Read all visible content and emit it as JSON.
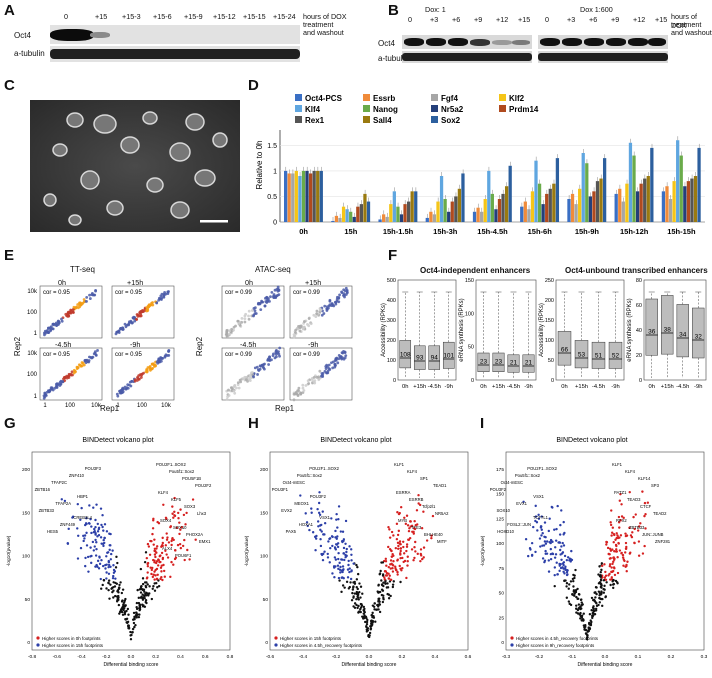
{
  "panels": {
    "A": "A",
    "B": "B",
    "C": "C",
    "D": "D",
    "E": "E",
    "F": "F",
    "G": "G",
    "H": "H",
    "I": "I"
  },
  "A": {
    "lanes": [
      "0",
      "+15",
      "+15-3",
      "+15-6",
      "+15-9",
      "+15-12",
      "+15-15",
      "+15-24"
    ],
    "rows": [
      "Oct4",
      "a-tubulin"
    ],
    "note1": "hours of DOX",
    "note2": "treatment",
    "note3": "and washout"
  },
  "B": {
    "group1": "Dox: 1",
    "group2": "Dox 1:600",
    "lanes": [
      "0",
      "+3",
      "+6",
      "+9",
      "+12",
      "+15"
    ],
    "rows": [
      "Oct4",
      "a-tubulin"
    ],
    "note1": "hours of DOX",
    "note2": "treatment",
    "note3": "and washout"
  },
  "D": {
    "ylabel": "Relative to 0h",
    "yticks": [
      "0",
      "0.5",
      "1",
      "1.5"
    ],
    "groups": [
      "0h",
      "15h",
      "15h-1.5h",
      "15h-3h",
      "15h-4.5h",
      "15h-6h",
      "15h-9h",
      "15h-12h",
      "15h-15h"
    ],
    "legend": [
      {
        "name": "Oct4-PCS",
        "color": "#3a6fc4"
      },
      {
        "name": "Essrb",
        "color": "#f08b3a"
      },
      {
        "name": "Fgf4",
        "color": "#a6a6a6"
      },
      {
        "name": "Klf2",
        "color": "#f5c518"
      },
      {
        "name": "Klf4",
        "color": "#5fa6e0"
      },
      {
        "name": "Nanog",
        "color": "#6aab4a"
      },
      {
        "name": "Nr5a2",
        "color": "#243f7a"
      },
      {
        "name": "Prdm14",
        "color": "#b04a1e"
      },
      {
        "name": "Rex1",
        "color": "#555555"
      },
      {
        "name": "Sall4",
        "color": "#9a7a10"
      },
      {
        "name": "Sox2",
        "color": "#2c5f9e"
      }
    ]
  },
  "chart_data": {
    "type": "bar",
    "title": "",
    "xlabel": "",
    "ylabel": "Relative to 0h",
    "ylim": [
      0,
      1.8
    ],
    "categories": [
      "0h",
      "15h",
      "15h-1.5h",
      "15h-3h",
      "15h-4.5h",
      "15h-6h",
      "15h-9h",
      "15h-12h",
      "15h-15h"
    ],
    "series": [
      {
        "name": "Oct4-PCS",
        "values": [
          1.0,
          0.02,
          0.05,
          0.08,
          0.2,
          0.3,
          0.45,
          0.55,
          0.6
        ]
      },
      {
        "name": "Essrb",
        "values": [
          0.95,
          0.12,
          0.15,
          0.2,
          0.28,
          0.4,
          0.55,
          0.65,
          0.7
        ]
      },
      {
        "name": "Fgf4",
        "values": [
          0.95,
          0.08,
          0.1,
          0.15,
          0.2,
          0.25,
          0.35,
          0.4,
          0.45
        ]
      },
      {
        "name": "Klf2",
        "values": [
          1.0,
          0.3,
          0.35,
          0.4,
          0.45,
          0.6,
          0.65,
          0.75,
          0.8
        ]
      },
      {
        "name": "Klf4",
        "values": [
          0.9,
          0.25,
          0.6,
          0.9,
          1.0,
          1.2,
          1.35,
          1.55,
          1.6
        ]
      },
      {
        "name": "Nanog",
        "values": [
          1.0,
          0.2,
          0.3,
          0.45,
          0.55,
          0.75,
          1.15,
          1.3,
          1.3
        ]
      },
      {
        "name": "Nr5a2",
        "values": [
          1.0,
          0.1,
          0.15,
          0.2,
          0.25,
          0.35,
          0.5,
          0.6,
          0.7
        ]
      },
      {
        "name": "Prdm14",
        "values": [
          0.95,
          0.3,
          0.35,
          0.4,
          0.45,
          0.55,
          0.6,
          0.75,
          0.8
        ]
      },
      {
        "name": "Rex1",
        "values": [
          1.0,
          0.35,
          0.4,
          0.5,
          0.55,
          0.65,
          0.8,
          0.85,
          0.85
        ]
      },
      {
        "name": "Sall4",
        "values": [
          1.0,
          0.55,
          0.6,
          0.65,
          0.7,
          0.75,
          0.85,
          0.9,
          0.9
        ]
      },
      {
        "name": "Sox2",
        "values": [
          1.0,
          0.4,
          0.6,
          0.95,
          1.1,
          1.25,
          1.25,
          1.45,
          1.45
        ]
      }
    ]
  },
  "E": {
    "ttseq": "TT-seq",
    "atacseq": "ATAC-seq",
    "times": [
      "0h",
      "+15h",
      "-4.5h",
      "-9h"
    ],
    "cor_tt": [
      "cor = 0.95",
      "cor = 0.95",
      "cor = 0.95",
      "cor = 0.95"
    ],
    "cor_atac": [
      "cor = 0.99",
      "cor = 0.99",
      "cor = 0.99",
      "cor = 0.99"
    ],
    "xlabel": "Rep1",
    "ylabel": "Rep2",
    "ticks": [
      "1",
      "100",
      "10k"
    ]
  },
  "F": {
    "title1": "Oct4-independent enhancers",
    "title2": "Oct4-unbound transcribed enhancers",
    "ylab1": "Accessibility (RPKs)",
    "ylab2": "eRNA synthesis (RPKs)",
    "xlabels": [
      "0h",
      "+15h",
      "-4.5h",
      "-9h"
    ],
    "box1": [
      "108",
      "93",
      "94",
      "101"
    ],
    "box2": [
      "23",
      "23",
      "21",
      "21"
    ],
    "box3": [
      "66",
      "53",
      "51",
      "52"
    ],
    "box4": [
      "36",
      "38",
      "34",
      "32"
    ]
  },
  "G": {
    "title": "BINDetect volcano plot",
    "xlabel": "Differential binding score",
    "ylabel": "-log10(pvalue)",
    "legend1": "Higher scores in 0h footprints",
    "legend2": "Higher scores in 15h footprints",
    "xticks": [
      "-0.8",
      "-0.6",
      "-0.4",
      "-0.2",
      "0.0",
      "0.2",
      "0.4",
      "0.6",
      "0.8"
    ],
    "yticks": [
      "0",
      "50",
      "100",
      "150",
      "200"
    ]
  },
  "H": {
    "title": "BINDetect volcano plot",
    "xlabel": "Differential binding score",
    "ylabel": "-log10(pvalue)",
    "legend1": "Higher scores in 15h footprints",
    "legend2": "Higher scores in 4.5h_recovery footprints",
    "xticks": [
      "-0.6",
      "-0.4",
      "-0.2",
      "0.0",
      "0.2",
      "0.4",
      "0.6"
    ],
    "yticks": [
      "0",
      "50",
      "100",
      "150",
      "200"
    ]
  },
  "I": {
    "title": "BINDetect volcano plot",
    "xlabel": "Differential binding score",
    "ylabel": "-log10(pvalue)",
    "legend1": "Higher scores in 4.5h_recovery footprints",
    "legend2": "Higher scores in 9h_recovery footprints",
    "xticks": [
      "-0.3",
      "-0.2",
      "-0.1",
      "0.0",
      "0.1",
      "0.2",
      "0.3"
    ],
    "yticks": [
      "0",
      "25",
      "50",
      "75",
      "100",
      "125",
      "150",
      "175"
    ]
  }
}
